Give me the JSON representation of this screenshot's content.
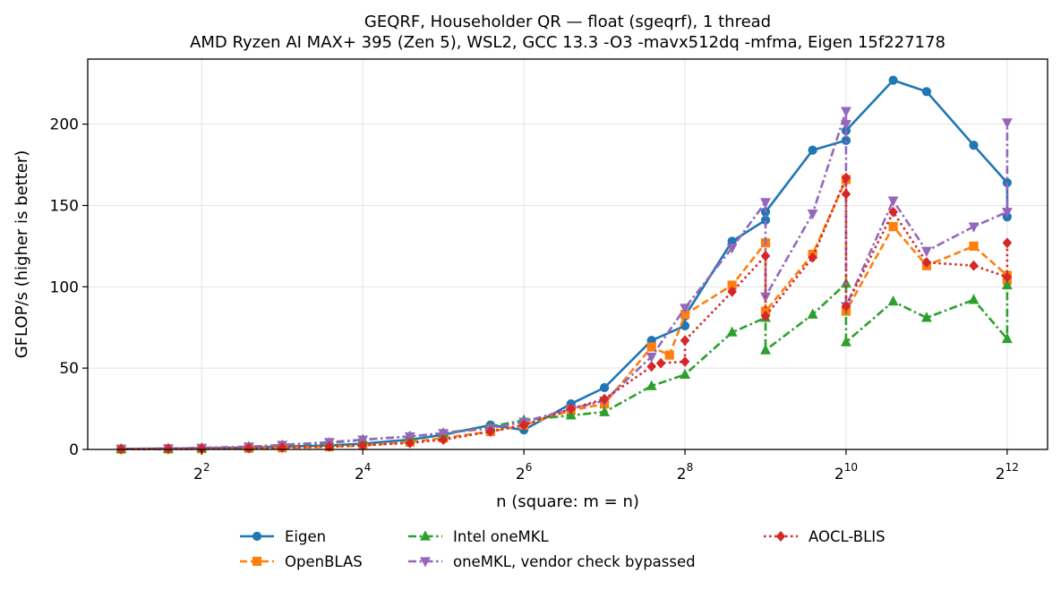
{
  "chart_data": {
    "type": "line",
    "title": "GEQRF, Householder QR — float (sgeqrf), 1 thread",
    "subtitle": "AMD Ryzen AI MAX+ 395 (Zen 5), WSL2, GCC 13.3 -O3 -mavx512dq -mfma, Eigen 15f227178",
    "xlabel": "n (square: m = n)",
    "ylabel": "GFLOP/s (higher is better)",
    "x_scale": "log2",
    "xlim": [
      1.5,
      5800
    ],
    "ylim": [
      0,
      240
    ],
    "x_ticks": [
      {
        "value": 4,
        "base": "2",
        "exp": "2"
      },
      {
        "value": 16,
        "base": "2",
        "exp": "4"
      },
      {
        "value": 64,
        "base": "2",
        "exp": "6"
      },
      {
        "value": 256,
        "base": "2",
        "exp": "8"
      },
      {
        "value": 1024,
        "base": "2",
        "exp": "10"
      },
      {
        "value": 4096,
        "base": "2",
        "exp": "12"
      }
    ],
    "y_ticks": [
      0,
      50,
      100,
      150,
      200
    ],
    "grid": true,
    "legend_position": "bottom-center",
    "series": [
      {
        "name": "Eigen",
        "color": "#1f77b4",
        "marker": "circle",
        "dash": "solid",
        "points": [
          [
            2,
            0.4
          ],
          [
            3,
            0.5
          ],
          [
            4,
            0.7
          ],
          [
            6,
            1.1
          ],
          [
            8,
            1.7
          ],
          [
            12,
            2.5
          ],
          [
            16,
            3.5
          ],
          [
            24,
            6
          ],
          [
            32,
            9
          ],
          [
            48,
            15
          ],
          [
            64,
            12
          ],
          [
            96,
            28
          ],
          [
            128,
            38
          ],
          [
            192,
            67
          ],
          [
            256,
            76
          ],
          [
            256,
            82
          ],
          [
            384,
            128
          ],
          [
            512,
            141
          ],
          [
            512,
            146
          ],
          [
            768,
            184
          ],
          [
            1024,
            190
          ],
          [
            1024,
            196
          ],
          [
            1536,
            227
          ],
          [
            2048,
            220
          ],
          [
            3072,
            187
          ],
          [
            4096,
            164
          ],
          [
            4096,
            143
          ]
        ]
      },
      {
        "name": "OpenBLAS",
        "color": "#ff7f0e",
        "marker": "square",
        "dash": "dashed",
        "points": [
          [
            2,
            0.2
          ],
          [
            3,
            0.3
          ],
          [
            4,
            0.4
          ],
          [
            6,
            0.7
          ],
          [
            8,
            1
          ],
          [
            12,
            1.6
          ],
          [
            16,
            2.5
          ],
          [
            24,
            4.5
          ],
          [
            32,
            7
          ],
          [
            48,
            11
          ],
          [
            64,
            15
          ],
          [
            96,
            24
          ],
          [
            128,
            28
          ],
          [
            192,
            63
          ],
          [
            224,
            58
          ],
          [
            256,
            83
          ],
          [
            384,
            101
          ],
          [
            512,
            127
          ],
          [
            512,
            85
          ],
          [
            768,
            120
          ],
          [
            1024,
            166
          ],
          [
            1024,
            85
          ],
          [
            1536,
            137
          ],
          [
            2048,
            113
          ],
          [
            3072,
            125
          ],
          [
            4096,
            107
          ],
          [
            4096,
            104
          ]
        ]
      },
      {
        "name": "Intel oneMKL",
        "color": "#2ca02c",
        "marker": "triangle-up",
        "dash": "dashdot",
        "points": [
          [
            2,
            0.3
          ],
          [
            3,
            0.5
          ],
          [
            4,
            0.9
          ],
          [
            6,
            1.6
          ],
          [
            8,
            2.5
          ],
          [
            12,
            4
          ],
          [
            16,
            6
          ],
          [
            24,
            8
          ],
          [
            32,
            10
          ],
          [
            48,
            14
          ],
          [
            64,
            18
          ],
          [
            96,
            21
          ],
          [
            128,
            23
          ],
          [
            192,
            39
          ],
          [
            256,
            46
          ],
          [
            384,
            72
          ],
          [
            512,
            81
          ],
          [
            512,
            61
          ],
          [
            768,
            83
          ],
          [
            1024,
            102
          ],
          [
            1024,
            66
          ],
          [
            1536,
            91
          ],
          [
            2048,
            81
          ],
          [
            3072,
            92
          ],
          [
            4096,
            68
          ],
          [
            4096,
            101
          ]
        ]
      },
      {
        "name": "oneMKL, vendor check bypassed",
        "color": "#9467bd",
        "marker": "triangle-down",
        "dash": "dashdot",
        "points": [
          [
            2,
            0.3
          ],
          [
            3,
            0.6
          ],
          [
            4,
            1
          ],
          [
            6,
            1.7
          ],
          [
            8,
            2.8
          ],
          [
            12,
            4.5
          ],
          [
            16,
            6
          ],
          [
            24,
            8
          ],
          [
            32,
            10
          ],
          [
            48,
            13
          ],
          [
            64,
            17
          ],
          [
            96,
            25
          ],
          [
            128,
            30
          ],
          [
            192,
            57
          ],
          [
            256,
            87
          ],
          [
            384,
            124
          ],
          [
            512,
            152
          ],
          [
            512,
            94
          ],
          [
            768,
            145
          ],
          [
            1024,
            208
          ],
          [
            1024,
            200
          ],
          [
            1024,
            88
          ],
          [
            1536,
            153
          ],
          [
            2048,
            122
          ],
          [
            3072,
            137
          ],
          [
            4096,
            146
          ],
          [
            4096,
            201
          ]
        ]
      },
      {
        "name": "AOCL-BLIS",
        "color": "#d62728",
        "marker": "diamond",
        "dash": "dotted",
        "points": [
          [
            2,
            0.2
          ],
          [
            3,
            0.3
          ],
          [
            4,
            0.5
          ],
          [
            6,
            0.8
          ],
          [
            8,
            1.2
          ],
          [
            12,
            1.8
          ],
          [
            16,
            2.5
          ],
          [
            24,
            4
          ],
          [
            32,
            6
          ],
          [
            48,
            11
          ],
          [
            64,
            15
          ],
          [
            96,
            25
          ],
          [
            128,
            31
          ],
          [
            192,
            51
          ],
          [
            208,
            53
          ],
          [
            256,
            54
          ],
          [
            256,
            67
          ],
          [
            384,
            97
          ],
          [
            512,
            119
          ],
          [
            512,
            82
          ],
          [
            768,
            118
          ],
          [
            1024,
            167
          ],
          [
            1024,
            157
          ],
          [
            1024,
            88
          ],
          [
            1536,
            146
          ],
          [
            2048,
            115
          ],
          [
            3072,
            113
          ],
          [
            4096,
            106
          ],
          [
            4096,
            127
          ]
        ]
      }
    ]
  }
}
